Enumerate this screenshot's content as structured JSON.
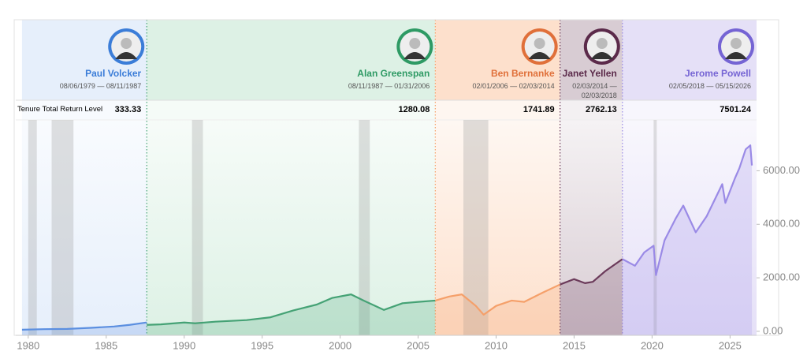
{
  "chart_data": {
    "type": "line",
    "return_label": "Tenure Total Return Level",
    "xlim": [
      1979.2,
      2026.7
    ],
    "xticks": [
      1980,
      1985,
      1990,
      1995,
      2000,
      2005,
      2010,
      2015,
      2020,
      2025
    ],
    "ylim": [
      -150,
      7900
    ],
    "yticks": [
      {
        "value": 0,
        "label": "0.00"
      },
      {
        "value": 2000,
        "label": "2000.00"
      },
      {
        "value": 4000,
        "label": "4000.00"
      },
      {
        "value": 6000,
        "label": "6000.00"
      }
    ],
    "recessions": [
      [
        1980.0,
        1980.55
      ],
      [
        1981.5,
        1982.9
      ],
      [
        1990.5,
        1991.2
      ],
      [
        2001.2,
        2001.9
      ],
      [
        2007.9,
        2009.5
      ],
      [
        2020.1,
        2020.3
      ]
    ],
    "series": [
      {
        "name": "Paul Volcker",
        "dates": "08/06/1979 — 08/11/1987",
        "return_level": 333.33,
        "color": "#5b8fe0",
        "name_color": "#3b7dd8",
        "bg": "#e6effb",
        "x": [
          1979.6,
          1981,
          1982.5,
          1984,
          1985.5,
          1986.5,
          1987.6
        ],
        "values": [
          60,
          80,
          90,
          130,
          180,
          240,
          330
        ]
      },
      {
        "name": "Alan Greenspan",
        "dates": "08/11/1987 — 01/31/2006",
        "return_level": 1280.08,
        "color": "#45a275",
        "name_color": "#2e9a64",
        "bg": "#ddf1e5",
        "x": [
          1987.6,
          1988.5,
          1990,
          1990.7,
          1992,
          1994,
          1995.5,
          1997,
          1998.5,
          1999.5,
          2000.7,
          2001.5,
          2002.8,
          2004,
          2005,
          2006.1
        ],
        "values": [
          240,
          260,
          330,
          300,
          360,
          420,
          520,
          780,
          1000,
          1250,
          1380,
          1150,
          800,
          1050,
          1100,
          1150
        ]
      },
      {
        "name": "Ben Bernanke",
        "dates": "02/01/2006 — 02/03/2014",
        "return_level": 1741.89,
        "color": "#f5a06a",
        "name_color": "#e0703a",
        "bg": "#fde0cc",
        "x": [
          2006.1,
          2007,
          2007.8,
          2008.7,
          2009.2,
          2010,
          2011,
          2011.8,
          2013,
          2014.1
        ],
        "values": [
          1150,
          1300,
          1380,
          950,
          620,
          950,
          1150,
          1100,
          1450,
          1750
        ]
      },
      {
        "name": "Janet Yellen",
        "dates": "02/03/2014 — 02/03/2018",
        "return_level": 2762.13,
        "color": "#6b3a5a",
        "name_color": "#5b2a4a",
        "bg": "#d8ccd3",
        "x": [
          2014.1,
          2015,
          2015.7,
          2016.2,
          2017,
          2018.1
        ],
        "values": [
          1750,
          1950,
          1800,
          1850,
          2250,
          2700
        ]
      },
      {
        "name": "Jerome Powell",
        "dates": "02/05/2018 — 05/15/2026",
        "return_level": 7501.24,
        "color": "#9a8ae6",
        "name_color": "#7564d4",
        "bg": "#e5e0f7",
        "x": [
          2018.1,
          2018.9,
          2019.5,
          2020.1,
          2020.25,
          2020.8,
          2021.5,
          2022.0,
          2022.8,
          2023.5,
          2024.0,
          2024.5,
          2024.7,
          2025.3,
          2025.6,
          2026.0,
          2026.3,
          2026.4
        ],
        "values": [
          2700,
          2450,
          2950,
          3200,
          2100,
          3400,
          4200,
          4700,
          3700,
          4300,
          4900,
          5500,
          4800,
          5700,
          6100,
          6800,
          6950,
          6200
        ]
      }
    ]
  }
}
